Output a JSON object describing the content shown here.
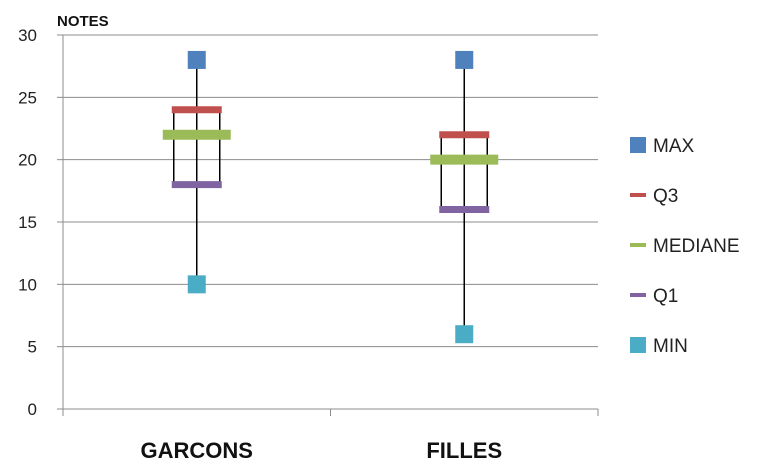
{
  "chart_data": {
    "type": "boxplot",
    "ylabel": "NOTES",
    "ylim": [
      0,
      30
    ],
    "yticks": [
      0,
      5,
      10,
      15,
      20,
      25,
      30
    ],
    "grid": true,
    "legend_position": "right",
    "categories": [
      "GARCONS",
      "FILLES"
    ],
    "series": [
      {
        "name": "MAX",
        "marker": "square",
        "color": "#4f81bd",
        "values": [
          28,
          28
        ]
      },
      {
        "name": "Q3",
        "marker": "dash",
        "color": "#c0504d",
        "values": [
          24,
          22
        ]
      },
      {
        "name": "MEDIANE",
        "marker": "dash",
        "color": "#9bbb59",
        "values": [
          22,
          20
        ]
      },
      {
        "name": "Q1",
        "marker": "dash",
        "color": "#8064a2",
        "values": [
          18,
          16
        ]
      },
      {
        "name": "MIN",
        "marker": "square",
        "color": "#4bacc6",
        "values": [
          10,
          6
        ]
      }
    ]
  }
}
